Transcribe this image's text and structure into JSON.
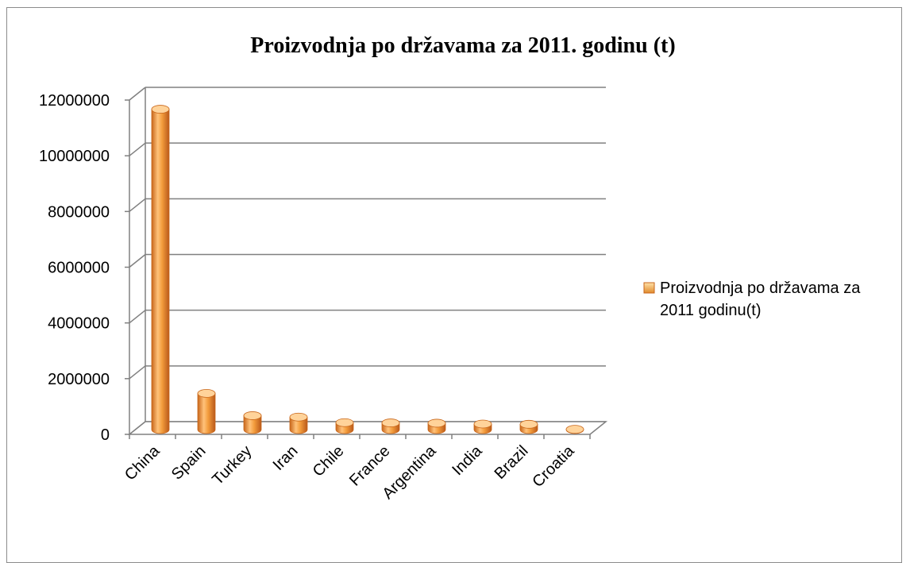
{
  "chart_data": {
    "type": "bar",
    "title": "Proizvodnja po državama za 2011. godinu (t)",
    "categories": [
      "China",
      "Spain",
      "Turkey",
      "Iran",
      "Chile",
      "France",
      "Argentina",
      "India",
      "Brazil",
      "Croatia"
    ],
    "series": [
      {
        "name": "Proizvodnja po državama za 2011 godinu(t)",
        "values": [
          11500000,
          1300000,
          500000,
          450000,
          250000,
          240000,
          230000,
          200000,
          190000,
          10000
        ]
      }
    ],
    "ylim": [
      0,
      12000000
    ],
    "yticks": [
      "0",
      "2000000",
      "4000000",
      "6000000",
      "8000000",
      "10000000",
      "12000000"
    ],
    "grid": true,
    "legend_position": "right",
    "colors": {
      "bar": "#f39c3c",
      "bar_light": "#ffd39a",
      "bar_dark": "#c8661a",
      "grid": "#808080"
    }
  }
}
